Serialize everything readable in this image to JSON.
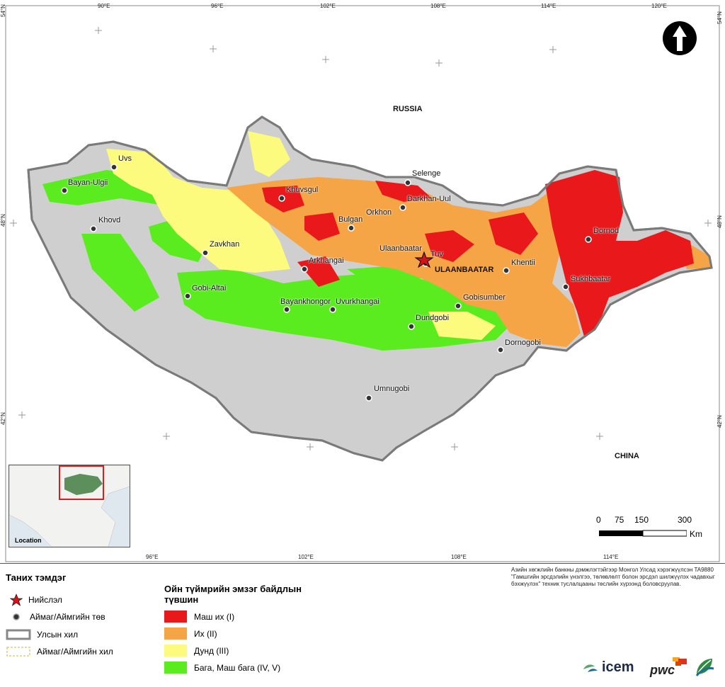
{
  "map": {
    "country_labels": {
      "north": "RUSSIA",
      "south": "CHINA"
    },
    "capital_label": "ULAANBAATAR",
    "cities": [
      {
        "name": "Uvs"
      },
      {
        "name": "Bayan-Ulgii"
      },
      {
        "name": "Khovd"
      },
      {
        "name": "Zavkhan"
      },
      {
        "name": "Gobi-Altai"
      },
      {
        "name": "Khuvsgul"
      },
      {
        "name": "Bulgan"
      },
      {
        "name": "Orkhon"
      },
      {
        "name": "Selenge"
      },
      {
        "name": "Darkhan-Uul"
      },
      {
        "name": "Ulaanbaatar"
      },
      {
        "name": "Tuv"
      },
      {
        "name": "Arkhangai"
      },
      {
        "name": "Bayankhongor"
      },
      {
        "name": "Uvurkhangai"
      },
      {
        "name": "Dundgobi"
      },
      {
        "name": "Gobisumber"
      },
      {
        "name": "Khentii"
      },
      {
        "name": "Dornod"
      },
      {
        "name": "Sukhbaatar"
      },
      {
        "name": "Dornogobi"
      },
      {
        "name": "Umnugobi"
      }
    ],
    "top_coords": [
      "90°E",
      "96°E",
      "102°E",
      "108°E",
      "114°E",
      "120°E"
    ],
    "bottom_coords": [
      "96°E",
      "102°E",
      "108°E",
      "114°E"
    ],
    "left_coords": [
      "54°N",
      "48°N",
      "42°N"
    ],
    "right_coords": [
      "54°N",
      "48°N",
      "42°N"
    ]
  },
  "inset": {
    "label": "Location"
  },
  "scale": {
    "ticks": [
      "0",
      "75",
      "150",
      "300"
    ],
    "unit": "Km"
  },
  "legend": {
    "title": "Таних тэмдэг",
    "items": [
      {
        "label": "Нийслэл",
        "icon": "star-icon"
      },
      {
        "label": "Аймаг/Аймгийн төв",
        "icon": "dot-icon"
      },
      {
        "label": "Улсын хил",
        "icon": "national-border-icon"
      },
      {
        "label": "Аймаг/Аймгийн хил",
        "icon": "province-border-icon"
      }
    ]
  },
  "risk": {
    "title": "Ойн түймрийн эмзэг байдлын түвшин",
    "classes": [
      {
        "label": "Маш их (I)",
        "color": "#e8181b"
      },
      {
        "label": "Их (II)",
        "color": "#f5a545"
      },
      {
        "label": "Дунд (III)",
        "color": "#fdfb7d"
      },
      {
        "label": "Бага, Маш бага (IV, V)",
        "color": "#5bec1f"
      }
    ]
  },
  "credits": {
    "note": "Азийн хөгжлийн банкны дэмжлэгтэйгээр Монгол Улсад хэрэгжүүлсэн TA9880 \"Гамшгийн эрсдэлийн үнэлгээ, төлөвлөлт болон эрсдэл шилжүүлэх чадавхыг бэхжүүлэх\" техник туслалцааны төслийн хүрээнд боловсруулав.",
    "logos": [
      "icem",
      "pwc"
    ]
  },
  "colors": {
    "basemap": "#cfcfcf",
    "border": "#7a7a7a",
    "sea": "#dfe8ee"
  }
}
